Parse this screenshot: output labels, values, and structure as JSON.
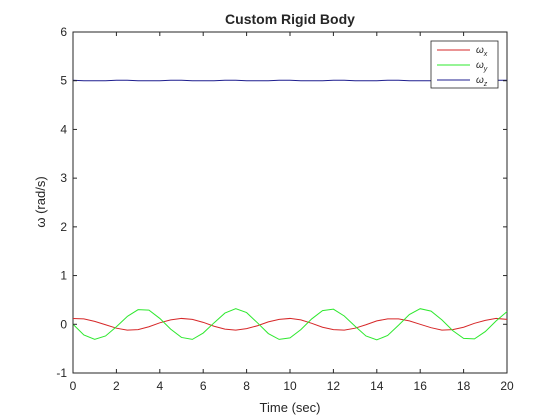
{
  "chart_data": {
    "type": "line",
    "title": "Custom Rigid Body",
    "xlabel": "Time (sec)",
    "ylabel": "ω (rad/s)",
    "xlim": [
      0,
      20
    ],
    "ylim": [
      -1,
      6
    ],
    "xticks": [
      0,
      2,
      4,
      6,
      8,
      10,
      12,
      14,
      16,
      18,
      20
    ],
    "yticks": [
      -1,
      0,
      1,
      2,
      3,
      4,
      5,
      6
    ],
    "grid": false,
    "legend_position": "top-right",
    "series": [
      {
        "name": "ωx",
        "symbol": "ω",
        "subscript": "x",
        "color": "#d62728",
        "x": [
          0,
          0.5,
          1,
          1.5,
          2,
          2.5,
          3,
          3.5,
          4,
          4.5,
          5,
          5.5,
          6,
          6.5,
          7,
          7.5,
          8,
          8.5,
          9,
          9.5,
          10,
          10.5,
          11,
          11.5,
          12,
          12.5,
          13,
          13.5,
          14,
          14.5,
          15,
          15.5,
          16,
          16.5,
          17,
          17.5,
          18,
          18.5,
          19,
          19.5,
          20
        ],
        "values": [
          0.12,
          0.11,
          0.06,
          -0.01,
          -0.08,
          -0.12,
          -0.11,
          -0.05,
          0.03,
          0.09,
          0.12,
          0.1,
          0.04,
          -0.04,
          -0.1,
          -0.12,
          -0.09,
          -0.03,
          0.05,
          0.1,
          0.12,
          0.09,
          0.02,
          -0.06,
          -0.11,
          -0.12,
          -0.08,
          -0.01,
          0.07,
          0.11,
          0.11,
          0.07,
          0.0,
          -0.07,
          -0.12,
          -0.11,
          -0.06,
          0.02,
          0.08,
          0.12,
          0.1
        ]
      },
      {
        "name": "ωy",
        "symbol": "ω",
        "subscript": "y",
        "color": "#2ee82e",
        "x": [
          0,
          0.5,
          1,
          1.5,
          2,
          2.5,
          3,
          3.5,
          4,
          4.5,
          5,
          5.5,
          6,
          6.5,
          7,
          7.5,
          8,
          8.5,
          9,
          9.5,
          10,
          10.5,
          11,
          11.5,
          12,
          12.5,
          13,
          13.5,
          14,
          14.5,
          15,
          15.5,
          16,
          16.5,
          17,
          17.5,
          18,
          18.5,
          19,
          19.5,
          20
        ],
        "values": [
          0.0,
          -0.22,
          -0.31,
          -0.24,
          -0.05,
          0.16,
          0.3,
          0.29,
          0.12,
          -0.1,
          -0.27,
          -0.31,
          -0.18,
          0.03,
          0.23,
          0.32,
          0.24,
          0.03,
          -0.19,
          -0.31,
          -0.28,
          -0.11,
          0.11,
          0.28,
          0.31,
          0.17,
          -0.04,
          -0.24,
          -0.32,
          -0.23,
          -0.02,
          0.2,
          0.32,
          0.27,
          0.09,
          -0.13,
          -0.29,
          -0.3,
          -0.15,
          0.07,
          0.26
        ]
      },
      {
        "name": "ωz",
        "symbol": "ω",
        "subscript": "z",
        "color": "#1f1f8f",
        "x": [
          0,
          0.5,
          1,
          1.5,
          2,
          2.5,
          3,
          3.5,
          4,
          4.5,
          5,
          5.5,
          6,
          6.5,
          7,
          7.5,
          8,
          8.5,
          9,
          9.5,
          10,
          10.5,
          11,
          11.5,
          12,
          12.5,
          13,
          13.5,
          14,
          14.5,
          15,
          15.5,
          16,
          16.5,
          17,
          17.5,
          18,
          18.5,
          19,
          19.5,
          20
        ],
        "values": [
          5.01,
          5.0,
          5.0,
          5.0,
          5.01,
          5.01,
          5.0,
          5.0,
          5.0,
          5.01,
          5.01,
          5.0,
          5.0,
          5.0,
          5.01,
          5.01,
          5.0,
          5.0,
          5.0,
          5.01,
          5.01,
          5.0,
          5.0,
          5.0,
          5.01,
          5.01,
          5.0,
          5.0,
          5.0,
          5.01,
          5.01,
          5.0,
          5.0,
          5.0,
          5.01,
          5.01,
          5.0,
          5.0,
          5.0,
          5.01,
          5.01
        ]
      }
    ]
  }
}
